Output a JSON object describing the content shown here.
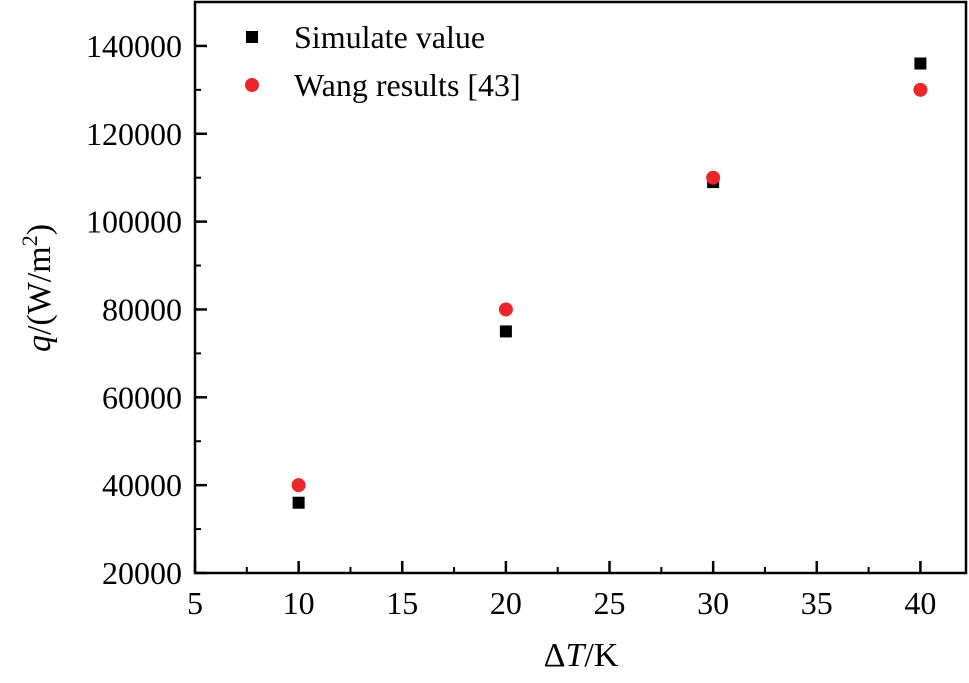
{
  "chart_data": {
    "type": "scatter",
    "title": "",
    "xlabel": {
      "prefix": "Δ",
      "variable": "T",
      "unit": "/K"
    },
    "ylabel": {
      "variable": "q",
      "unit_open": "/(W/m",
      "unit_sup": "2",
      "unit_close": ")"
    },
    "xlim": [
      5,
      42.2
    ],
    "ylim": [
      20000,
      150000
    ],
    "xticks": [
      5,
      10,
      15,
      20,
      25,
      30,
      35,
      40
    ],
    "xtick_labels": [
      "5",
      "10",
      "15",
      "20",
      "25",
      "30",
      "35",
      "40"
    ],
    "yticks": [
      20000,
      40000,
      60000,
      80000,
      100000,
      120000,
      140000
    ],
    "ytick_labels": [
      "20000",
      "40000",
      "60000",
      "80000",
      "100000",
      "120000",
      "140000"
    ],
    "grid": false,
    "legend_position": "top-left",
    "series": [
      {
        "name": "Simulate value",
        "marker": "square",
        "color": "#000000",
        "x": [
          10,
          20,
          30,
          40
        ],
        "y": [
          36000,
          75000,
          109000,
          136000
        ]
      },
      {
        "name": "Wang results [43]",
        "marker": "circle",
        "color": "#e8262b",
        "x": [
          10,
          20,
          30,
          40
        ],
        "y": [
          40000,
          80000,
          110000,
          130000
        ]
      }
    ]
  }
}
